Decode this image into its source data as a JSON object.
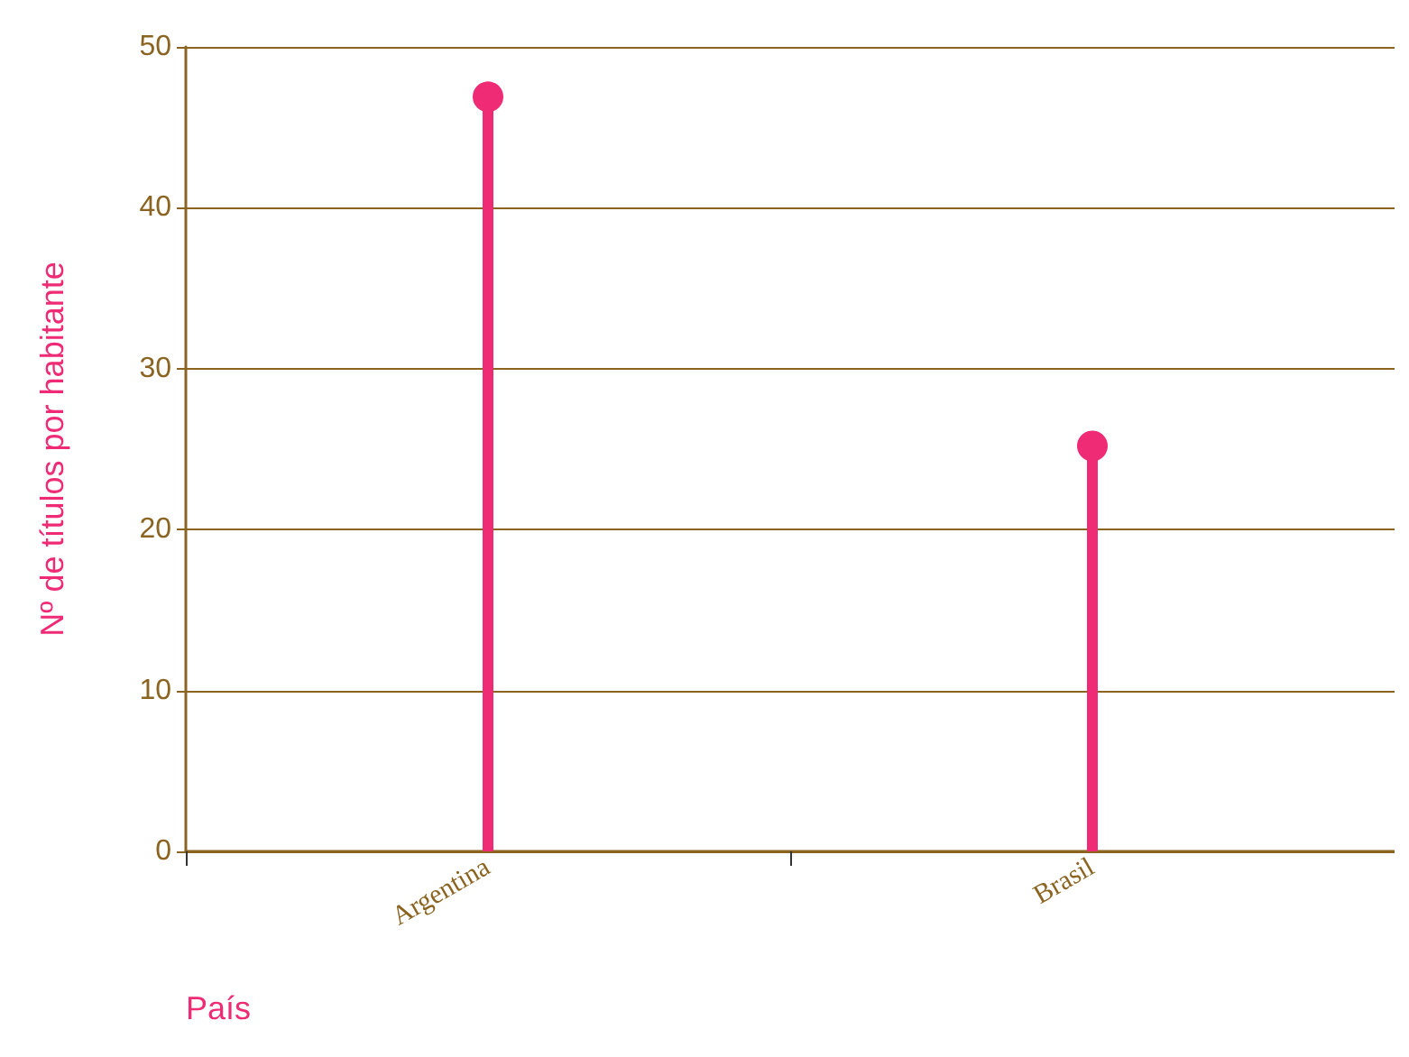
{
  "chart_data": {
    "type": "lollipop",
    "categories": [
      "Argentina",
      "Brasil"
    ],
    "values": [
      46.9,
      25.2
    ],
    "color": "#ee2b74",
    "xlabel": "País",
    "ylabel": "Nº de títulos por habitante",
    "ylim": [
      0,
      50
    ],
    "yticks": [
      0,
      10,
      20,
      30,
      40,
      50
    ],
    "grid": "y",
    "marker": "circle"
  }
}
